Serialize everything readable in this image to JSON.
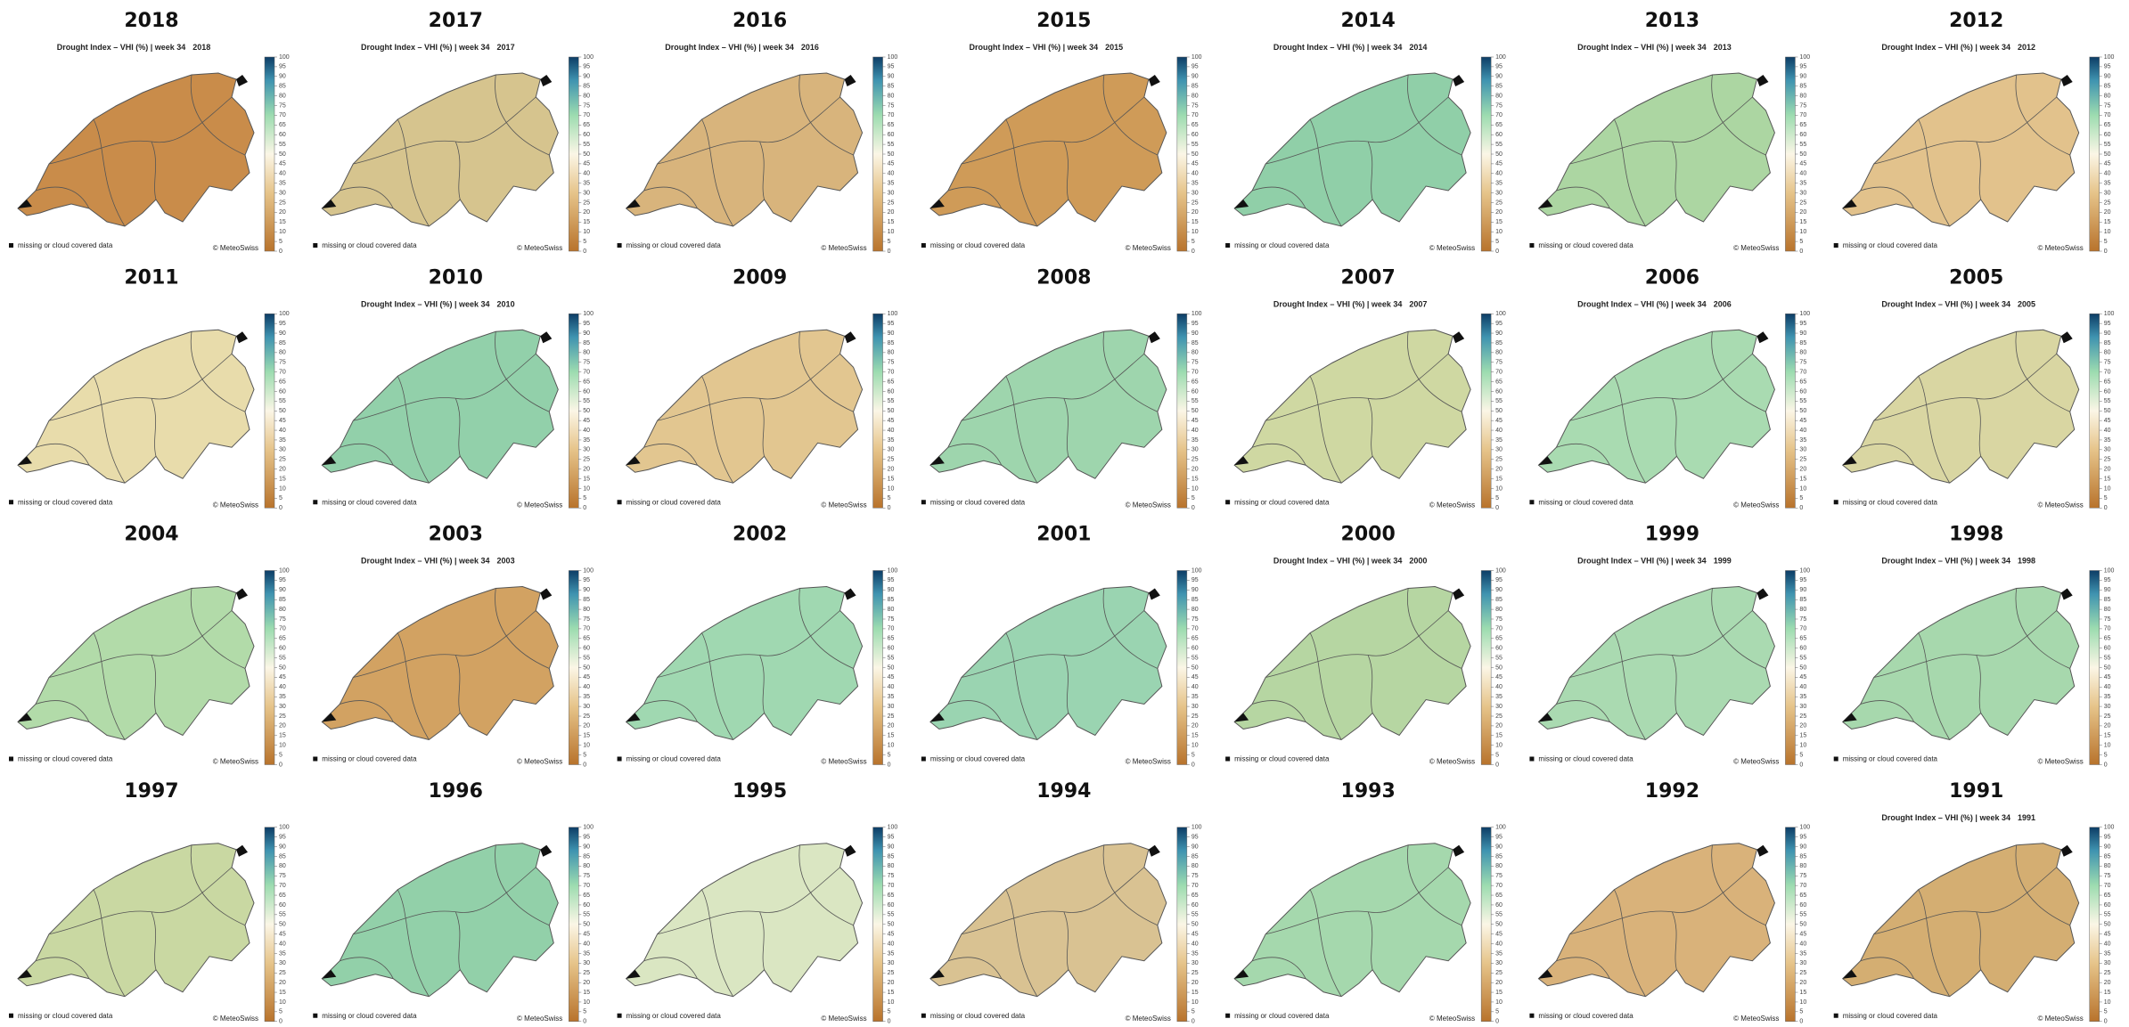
{
  "map_title": "Drought Index – VHI (%) | week 34",
  "legend_label": "missing or cloud covered data",
  "credit": "© MeteoSwiss",
  "colorbar_ticks": [
    0,
    5,
    10,
    15,
    20,
    25,
    30,
    35,
    40,
    45,
    50,
    55,
    60,
    65,
    70,
    75,
    80,
    85,
    90,
    95,
    100
  ],
  "panels": [
    {
      "year": "2018",
      "title_shown": true,
      "color": "#c98c4a"
    },
    {
      "year": "2017",
      "title_shown": true,
      "color": "#d6c48e"
    },
    {
      "year": "2016",
      "title_shown": true,
      "color": "#d8b47c"
    },
    {
      "year": "2015",
      "title_shown": true,
      "color": "#cf9b58"
    },
    {
      "year": "2014",
      "title_shown": true,
      "color": "#90cfa8"
    },
    {
      "year": "2013",
      "title_shown": true,
      "color": "#acd6a2"
    },
    {
      "year": "2012",
      "title_shown": true,
      "color": "#e2c28c"
    },
    {
      "year": "2011",
      "title_shown": false,
      "color": "#e8dcab"
    },
    {
      "year": "2010",
      "title_shown": true,
      "color": "#92d0aa"
    },
    {
      "year": "2009",
      "title_shown": false,
      "color": "#e2c690"
    },
    {
      "year": "2008",
      "title_shown": false,
      "color": "#9ed5ad"
    },
    {
      "year": "2007",
      "title_shown": true,
      "color": "#cfd8a2"
    },
    {
      "year": "2006",
      "title_shown": true,
      "color": "#a9dbb1"
    },
    {
      "year": "2005",
      "title_shown": true,
      "color": "#d9d6a2"
    },
    {
      "year": "2004",
      "title_shown": false,
      "color": "#b2dba9"
    },
    {
      "year": "2003",
      "title_shown": true,
      "color": "#d2a262"
    },
    {
      "year": "2002",
      "title_shown": false,
      "color": "#a0d8b1"
    },
    {
      "year": "2001",
      "title_shown": false,
      "color": "#9ad4b1"
    },
    {
      "year": "2000",
      "title_shown": true,
      "color": "#b6d6a2"
    },
    {
      "year": "1999",
      "title_shown": true,
      "color": "#aadab1"
    },
    {
      "year": "1998",
      "title_shown": true,
      "color": "#a7d8ad"
    },
    {
      "year": "1997",
      "title_shown": false,
      "color": "#c9d8a2"
    },
    {
      "year": "1996",
      "title_shown": false,
      "color": "#92d0a9"
    },
    {
      "year": "1995",
      "title_shown": false,
      "color": "#dae6c2"
    },
    {
      "year": "1994",
      "title_shown": false,
      "color": "#d9c292"
    },
    {
      "year": "1993",
      "title_shown": false,
      "color": "#a5d8ad"
    },
    {
      "year": "1992",
      "title_shown": false,
      "color": "#d9b27a"
    },
    {
      "year": "1991",
      "title_shown": true,
      "color": "#d4ae72"
    }
  ]
}
